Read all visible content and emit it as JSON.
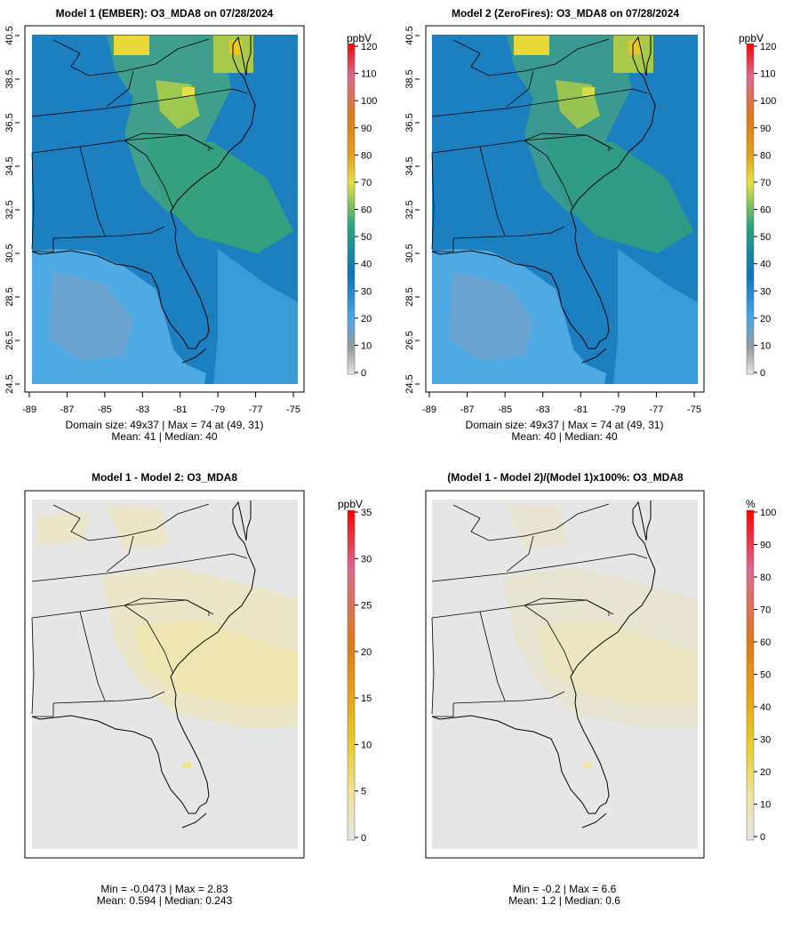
{
  "chart_data": [
    {
      "type": "heatmap",
      "title": "Model 1 (EMBER): O3_MDA8 on 07/28/2024",
      "x_ticks": [
        "-89",
        "-87",
        "-85",
        "-83",
        "-81",
        "-79",
        "-77",
        "-75"
      ],
      "y_ticks": [
        "24.5",
        "26.5",
        "28.5",
        "30.5",
        "32.5",
        "34.5",
        "36.5",
        "38.5",
        "40.5"
      ],
      "xlim": [
        -89,
        -75
      ],
      "ylim": [
        24.5,
        40.5
      ],
      "stats_line1": "Domain size: 49x37 | Max = 74 at (49, 31)",
      "stats_line2": "Mean: 41 |  Median: 40",
      "colorbar": {
        "unit": "ppbV",
        "range": [
          0,
          120
        ],
        "ticks": [
          "0",
          "10",
          "20",
          "30",
          "40",
          "50",
          "60",
          "70",
          "80",
          "90",
          "100",
          "110",
          "120"
        ]
      },
      "summary": {
        "mean": 41,
        "median": 40,
        "max": 74,
        "max_at": [
          49,
          31
        ],
        "grid": [
          49,
          37
        ]
      }
    },
    {
      "type": "heatmap",
      "title": "Model 2 (ZeroFires): O3_MDA8 on 07/28/2024",
      "x_ticks": [
        "-89",
        "-87",
        "-85",
        "-83",
        "-81",
        "-79",
        "-77",
        "-75"
      ],
      "y_ticks": [
        "24.5",
        "26.5",
        "28.5",
        "30.5",
        "32.5",
        "34.5",
        "36.5",
        "38.5",
        "40.5"
      ],
      "xlim": [
        -89,
        -75
      ],
      "ylim": [
        24.5,
        40.5
      ],
      "stats_line1": "Domain size: 49x37 | Max = 74 at (49, 31)",
      "stats_line2": "Mean: 40 |  Median: 40",
      "colorbar": {
        "unit": "ppbV",
        "range": [
          0,
          120
        ],
        "ticks": [
          "0",
          "10",
          "20",
          "30",
          "40",
          "50",
          "60",
          "70",
          "80",
          "90",
          "100",
          "110",
          "120"
        ]
      },
      "summary": {
        "mean": 40,
        "median": 40,
        "max": 74,
        "max_at": [
          49,
          31
        ],
        "grid": [
          49,
          37
        ]
      }
    },
    {
      "type": "heatmap",
      "title": "Model 1 - Model 2: O3_MDA8",
      "stats_line1": "Min = -0.0473 | Max = 2.83",
      "stats_line2": "Mean: 0.594 |  Median: 0.243",
      "colorbar": {
        "unit": "ppbV",
        "range": [
          0,
          35
        ],
        "ticks": [
          "0",
          "5",
          "10",
          "15",
          "20",
          "25",
          "30",
          "35"
        ]
      },
      "summary": {
        "min": -0.0473,
        "max": 2.83,
        "mean": 0.594,
        "median": 0.243
      }
    },
    {
      "type": "heatmap",
      "title": "(Model 1 - Model 2)/(Model 1)x100%: O3_MDA8",
      "stats_line1": "Min = -0.2 | Max = 6.6",
      "stats_line2": "Mean: 1.2 |  Median: 0.6",
      "colorbar": {
        "unit": "%",
        "range": [
          0,
          100
        ],
        "ticks": [
          "0",
          "10",
          "20",
          "30",
          "40",
          "50",
          "60",
          "70",
          "80",
          "90",
          "100"
        ]
      },
      "summary": {
        "min": -0.2,
        "max": 6.6,
        "mean": 1.2,
        "median": 0.6
      }
    }
  ],
  "colors": {
    "ramp": [
      "#e6e6e6",
      "#999999",
      "#4aa8e8",
      "#0874b8",
      "#2aa67c",
      "#e8e040",
      "#e2a21a",
      "#dc7a1c",
      "#d96a8e",
      "#ff0000"
    ],
    "diff_ramp": [
      "#e6e6e6",
      "#efe39a",
      "#e8d02c",
      "#e8a814",
      "#de7a1a",
      "#d96a8e",
      "#ff0000"
    ]
  }
}
